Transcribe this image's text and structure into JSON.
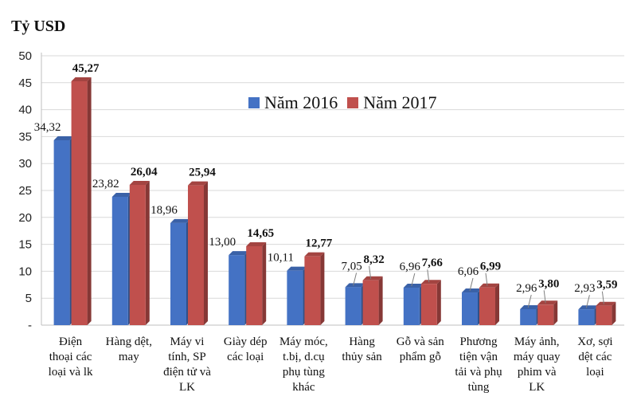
{
  "chart_data": {
    "type": "bar",
    "title": "",
    "ylabel": "Tỷ USD",
    "xlabel": "",
    "ylim": [
      0,
      50
    ],
    "yticks": [
      "-",
      "5",
      "10",
      "15",
      "20",
      "25",
      "30",
      "35",
      "40",
      "45",
      "50"
    ],
    "legend_position": "top-center",
    "grid": true,
    "categories": [
      "Điện thoại các loại và lk",
      "Hàng dệt, may",
      "Máy vi tính, SP điện tử và LK",
      "Giày dép các loại",
      "Máy móc, t.bị, d.cụ phụ tùng khác",
      "Hàng thủy sản",
      "Gỗ và sản phẩm gỗ",
      "Phương tiện vận tải và phụ tùng",
      "Máy ảnh, máy quay phim và LK",
      "Xơ, sợi dệt các loại"
    ],
    "category_lines": [
      [
        "Điện",
        "thoại các",
        "loại và lk"
      ],
      [
        "Hàng dệt,",
        "may"
      ],
      [
        "Máy vi",
        "tính, SP",
        "điện tử và",
        "LK"
      ],
      [
        "Giày dép",
        "các loại"
      ],
      [
        "Máy móc,",
        "t.bị, d.cụ",
        "phụ tùng",
        "khác"
      ],
      [
        "Hàng",
        "thủy sản"
      ],
      [
        "Gỗ và sản",
        "phẩm gỗ"
      ],
      [
        "Phương",
        "tiện vận",
        "tải và phụ",
        "tùng"
      ],
      [
        "Máy ảnh,",
        "máy quay",
        "phim và",
        "LK"
      ],
      [
        "Xơ, sợi",
        "dệt các",
        "loại"
      ]
    ],
    "series": [
      {
        "name": "Năm 2016",
        "color": "#4472c4",
        "values": [
          34.32,
          23.82,
          18.96,
          13.0,
          10.11,
          7.05,
          6.96,
          6.06,
          2.96,
          2.93
        ],
        "labels": [
          "34,32",
          "23,82",
          "18,96",
          "13,00",
          "10,11",
          "7,05",
          "6,96",
          "6,06",
          "2,96",
          "2,93"
        ]
      },
      {
        "name": "Năm 2017",
        "color": "#c0504d",
        "values": [
          45.27,
          26.04,
          25.94,
          14.65,
          12.77,
          8.32,
          7.66,
          6.99,
          3.8,
          3.59
        ],
        "labels": [
          "45,27",
          "26,04",
          "25,94",
          "14,65",
          "12,77",
          "8,32",
          "7,66",
          "6,99",
          "3,80",
          "3,59"
        ]
      }
    ]
  }
}
